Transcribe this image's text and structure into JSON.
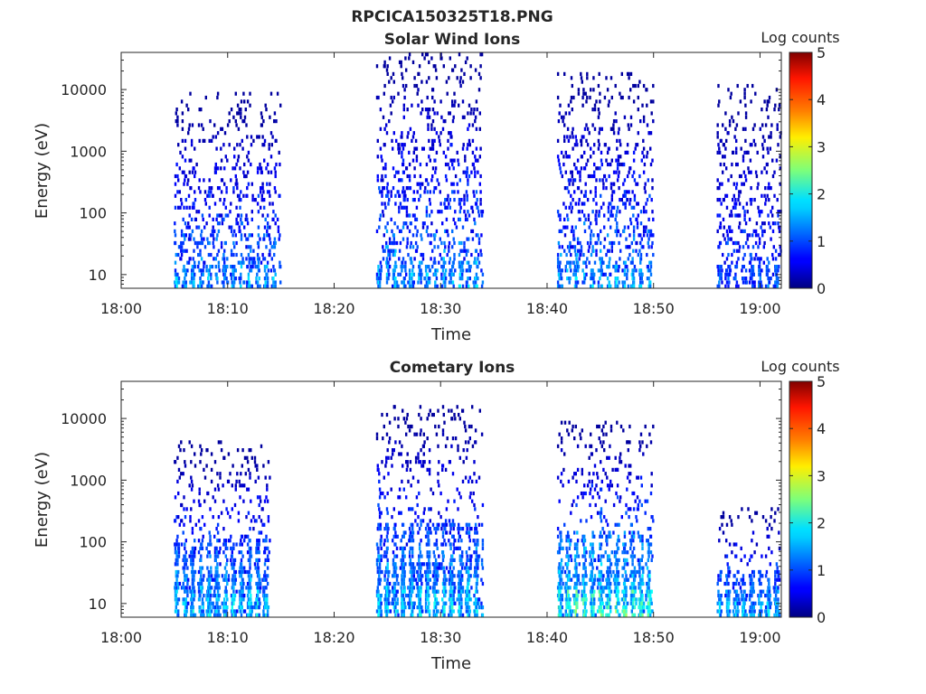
{
  "figure_title": "RPCICA150325T18.PNG",
  "colorbar": {
    "label": "Log counts",
    "ticks": [
      "0",
      "1",
      "2",
      "3",
      "4",
      "5"
    ],
    "range": [
      0,
      5
    ],
    "colormap": "jet"
  },
  "chart_data": [
    {
      "type": "heatmap",
      "title": "Solar Wind Ions",
      "xlabel": "Time",
      "ylabel": "Energy (eV)",
      "x_range": [
        "18:00",
        "19:02"
      ],
      "y_range": [
        6,
        40000
      ],
      "y_scale": "log",
      "x_ticks": [
        "18:00",
        "18:10",
        "18:20",
        "18:30",
        "18:40",
        "18:50",
        "19:00"
      ],
      "y_ticks": [
        "10",
        "100",
        "1000",
        "10000"
      ],
      "activity_intervals": [
        {
          "start": "18:05",
          "end": "18:15",
          "energy_range": [
            6,
            9000
          ],
          "peak_log_counts": 2.0
        },
        {
          "start": "18:24",
          "end": "18:34",
          "energy_range": [
            6,
            40000
          ],
          "peak_log_counts": 2.0
        },
        {
          "start": "18:41",
          "end": "18:50",
          "energy_range": [
            6,
            20000
          ],
          "peak_log_counts": 2.0
        },
        {
          "start": "18:56",
          "end": "19:02",
          "energy_range": [
            6,
            13000
          ],
          "peak_log_counts": 1.5
        }
      ]
    },
    {
      "type": "heatmap",
      "title": "Cometary Ions",
      "xlabel": "Time",
      "ylabel": "Energy (eV)",
      "x_range": [
        "18:00",
        "19:02"
      ],
      "y_range": [
        6,
        40000
      ],
      "y_scale": "log",
      "x_ticks": [
        "18:00",
        "18:10",
        "18:20",
        "18:30",
        "18:40",
        "18:50",
        "19:00"
      ],
      "y_ticks": [
        "10",
        "100",
        "1000",
        "10000"
      ],
      "activity_intervals": [
        {
          "start": "18:05",
          "end": "18:14",
          "energy_range": [
            6,
            4500
          ],
          "peak_log_counts": 2.3
        },
        {
          "start": "18:24",
          "end": "18:34",
          "energy_range": [
            6,
            17000
          ],
          "peak_log_counts": 2.3
        },
        {
          "start": "18:41",
          "end": "18:50",
          "energy_range": [
            6,
            9000
          ],
          "peak_log_counts": 3.0
        },
        {
          "start": "18:56",
          "end": "19:02",
          "energy_range": [
            6,
            350
          ],
          "peak_log_counts": 2.3
        }
      ]
    }
  ]
}
